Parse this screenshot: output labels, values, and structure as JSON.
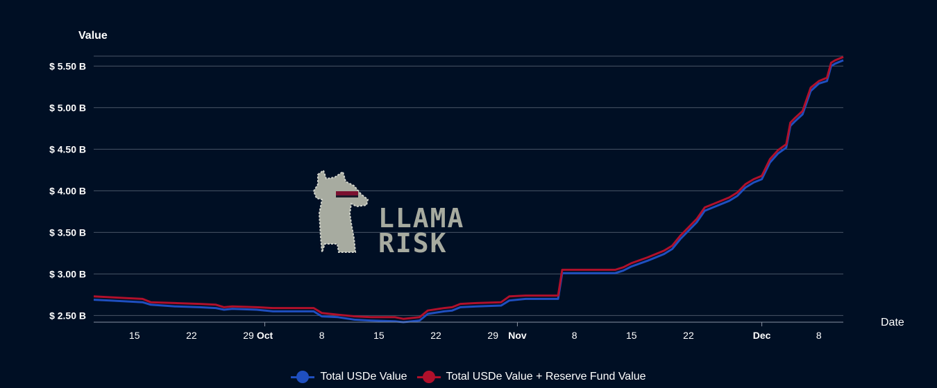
{
  "chart_data": {
    "type": "line",
    "ylabel": "Value",
    "xlabel": "Date",
    "ylim": [
      2.42,
      5.62
    ],
    "y_ticks": [
      2.5,
      3.0,
      3.5,
      4.0,
      4.5,
      5.0,
      5.5
    ],
    "y_tick_labels": [
      "$ 2.50 B",
      "$ 3.00 B",
      "$ 3.50 B",
      "$ 4.00 B",
      "$ 4.50 B",
      "$ 5.00 B",
      "$ 5.50 B"
    ],
    "x_range": [
      "2024-09-10",
      "2024-12-11"
    ],
    "x_ticks": [
      {
        "date": "2024-09-15",
        "label": "15",
        "bold": false
      },
      {
        "date": "2024-09-22",
        "label": "22",
        "bold": false
      },
      {
        "date": "2024-09-29",
        "label": "29",
        "bold": false
      },
      {
        "date": "2024-10-01",
        "label": "Oct",
        "bold": true
      },
      {
        "date": "2024-10-08",
        "label": "8",
        "bold": false
      },
      {
        "date": "2024-10-15",
        "label": "15",
        "bold": false
      },
      {
        "date": "2024-10-22",
        "label": "22",
        "bold": false
      },
      {
        "date": "2024-10-29",
        "label": "29",
        "bold": false
      },
      {
        "date": "2024-11-01",
        "label": "Nov",
        "bold": true
      },
      {
        "date": "2024-11-08",
        "label": "8",
        "bold": false
      },
      {
        "date": "2024-11-15",
        "label": "15",
        "bold": false
      },
      {
        "date": "2024-11-22",
        "label": "22",
        "bold": false
      },
      {
        "date": "2024-12-01",
        "label": "Dec",
        "bold": true
      },
      {
        "date": "2024-12-08",
        "label": "8",
        "bold": false
      }
    ],
    "grid": true,
    "series": [
      {
        "name": "Total USDe Value",
        "color": "#1f4fbf",
        "points": [
          [
            "2024-09-10",
            2.69
          ],
          [
            "2024-09-12",
            2.68
          ],
          [
            "2024-09-14",
            2.67
          ],
          [
            "2024-09-16",
            2.66
          ],
          [
            "2024-09-17",
            2.63
          ],
          [
            "2024-09-20",
            2.61
          ],
          [
            "2024-09-23",
            2.6
          ],
          [
            "2024-09-25",
            2.59
          ],
          [
            "2024-09-26",
            2.57
          ],
          [
            "2024-09-27",
            2.58
          ],
          [
            "2024-09-30",
            2.57
          ],
          [
            "2024-10-02",
            2.55
          ],
          [
            "2024-10-05",
            2.55
          ],
          [
            "2024-10-07",
            2.55
          ],
          [
            "2024-10-08",
            2.49
          ],
          [
            "2024-10-10",
            2.48
          ],
          [
            "2024-10-12",
            2.45
          ],
          [
            "2024-10-14",
            2.44
          ],
          [
            "2024-10-17",
            2.43
          ],
          [
            "2024-10-18",
            2.42
          ],
          [
            "2024-10-20",
            2.44
          ],
          [
            "2024-10-21",
            2.52
          ],
          [
            "2024-10-23",
            2.55
          ],
          [
            "2024-10-24",
            2.56
          ],
          [
            "2024-10-25",
            2.6
          ],
          [
            "2024-10-27",
            2.61
          ],
          [
            "2024-10-30",
            2.62
          ],
          [
            "2024-10-31",
            2.68
          ],
          [
            "2024-11-02",
            2.7
          ],
          [
            "2024-11-06",
            2.7
          ],
          [
            "2024-11-06.5",
            3.01
          ],
          [
            "2024-11-13",
            3.01
          ],
          [
            "2024-11-14",
            3.04
          ],
          [
            "2024-11-15",
            3.09
          ],
          [
            "2024-11-17",
            3.16
          ],
          [
            "2024-11-19",
            3.24
          ],
          [
            "2024-11-20",
            3.3
          ],
          [
            "2024-11-21",
            3.42
          ],
          [
            "2024-11-23",
            3.62
          ],
          [
            "2024-11-24",
            3.76
          ],
          [
            "2024-11-25",
            3.8
          ],
          [
            "2024-11-27",
            3.88
          ],
          [
            "2024-11-28",
            3.94
          ],
          [
            "2024-11-29",
            4.04
          ],
          [
            "2024-11-30",
            4.1
          ],
          [
            "2024-12-01",
            4.14
          ],
          [
            "2024-12-02",
            4.34
          ],
          [
            "2024-12-03",
            4.45
          ],
          [
            "2024-12-04",
            4.52
          ],
          [
            "2024-12-04.5",
            4.78
          ],
          [
            "2024-12-05",
            4.83
          ],
          [
            "2024-12-06",
            4.92
          ],
          [
            "2024-12-07",
            5.2
          ],
          [
            "2024-12-08",
            5.29
          ],
          [
            "2024-12-09",
            5.32
          ],
          [
            "2024-12-09.5",
            5.5
          ],
          [
            "2024-12-10",
            5.53
          ],
          [
            "2024-12-11",
            5.57
          ]
        ]
      },
      {
        "name": "Total USDe Value + Reserve Fund Value",
        "color": "#b0102b",
        "points": [
          [
            "2024-09-10",
            2.73
          ],
          [
            "2024-09-12",
            2.72
          ],
          [
            "2024-09-14",
            2.71
          ],
          [
            "2024-09-16",
            2.7
          ],
          [
            "2024-09-17",
            2.66
          ],
          [
            "2024-09-20",
            2.65
          ],
          [
            "2024-09-23",
            2.64
          ],
          [
            "2024-09-25",
            2.63
          ],
          [
            "2024-09-26",
            2.6
          ],
          [
            "2024-09-27",
            2.61
          ],
          [
            "2024-09-30",
            2.6
          ],
          [
            "2024-10-02",
            2.59
          ],
          [
            "2024-10-05",
            2.59
          ],
          [
            "2024-10-07",
            2.59
          ],
          [
            "2024-10-08",
            2.53
          ],
          [
            "2024-10-10",
            2.51
          ],
          [
            "2024-10-12",
            2.49
          ],
          [
            "2024-10-14",
            2.48
          ],
          [
            "2024-10-17",
            2.48
          ],
          [
            "2024-10-18",
            2.46
          ],
          [
            "2024-10-20",
            2.48
          ],
          [
            "2024-10-21",
            2.56
          ],
          [
            "2024-10-23",
            2.59
          ],
          [
            "2024-10-24",
            2.6
          ],
          [
            "2024-10-25",
            2.64
          ],
          [
            "2024-10-27",
            2.65
          ],
          [
            "2024-10-30",
            2.66
          ],
          [
            "2024-10-31",
            2.73
          ],
          [
            "2024-11-02",
            2.74
          ],
          [
            "2024-11-06",
            2.74
          ],
          [
            "2024-11-06.5",
            3.05
          ],
          [
            "2024-11-13",
            3.05
          ],
          [
            "2024-11-14",
            3.08
          ],
          [
            "2024-11-15",
            3.13
          ],
          [
            "2024-11-17",
            3.2
          ],
          [
            "2024-11-19",
            3.28
          ],
          [
            "2024-11-20",
            3.34
          ],
          [
            "2024-11-21",
            3.46
          ],
          [
            "2024-11-23",
            3.66
          ],
          [
            "2024-11-24",
            3.8
          ],
          [
            "2024-11-25",
            3.84
          ],
          [
            "2024-11-27",
            3.92
          ],
          [
            "2024-11-28",
            3.98
          ],
          [
            "2024-11-29",
            4.08
          ],
          [
            "2024-11-30",
            4.14
          ],
          [
            "2024-12-01",
            4.18
          ],
          [
            "2024-12-02",
            4.38
          ],
          [
            "2024-12-03",
            4.49
          ],
          [
            "2024-12-04",
            4.56
          ],
          [
            "2024-12-04.5",
            4.82
          ],
          [
            "2024-12-05",
            4.87
          ],
          [
            "2024-12-06",
            4.96
          ],
          [
            "2024-12-07",
            5.24
          ],
          [
            "2024-12-08",
            5.32
          ],
          [
            "2024-12-09",
            5.36
          ],
          [
            "2024-12-09.5",
            5.54
          ],
          [
            "2024-12-10",
            5.57
          ],
          [
            "2024-12-11",
            5.61
          ]
        ]
      }
    ]
  },
  "watermark": {
    "line1": "LLAMA",
    "line2": "RISK",
    "icon": "llama-icon"
  },
  "colors": {
    "background": "#000f24",
    "grid": "#4a5566",
    "watermark": "#a7aba0"
  }
}
